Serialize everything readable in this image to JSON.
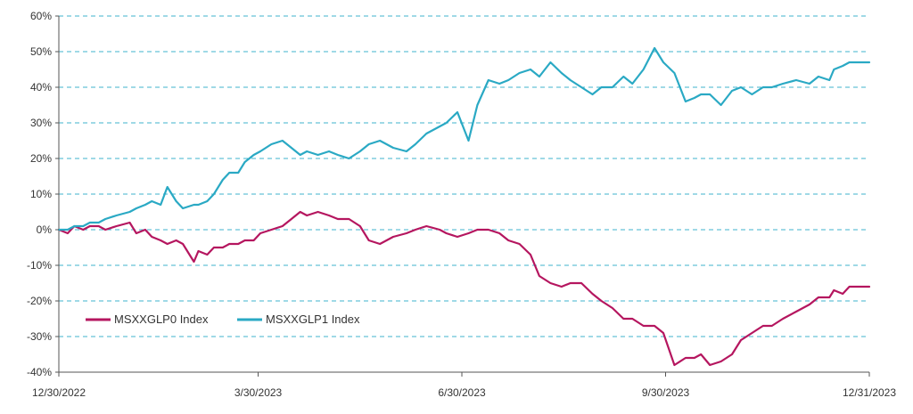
{
  "chart_data": {
    "type": "line",
    "title": "",
    "xlabel": "",
    "ylabel": "",
    "xlim": [
      "12/30/2022",
      "12/31/2023"
    ],
    "ylim": [
      -40,
      60
    ],
    "grid": "horizontal dashed",
    "legend_placement": "bottom-left",
    "y_ticks": [
      60,
      50,
      40,
      30,
      20,
      10,
      0,
      -10,
      -20,
      -30,
      -40
    ],
    "y_tick_labels": [
      "60%",
      "50%",
      "40%",
      "30%",
      "20%",
      "10%",
      "0%",
      "-10%",
      "-20%",
      "-30%",
      "-40%"
    ],
    "x_tick_labels": [
      "12/30/2022",
      "3/30/2023",
      "6/30/2023",
      "9/30/2023",
      "12/31/2023"
    ],
    "series": [
      {
        "name": "MSXXGLP0 Index",
        "color": "#b5165f",
        "x": [
          "2022-12-30",
          "2023-01-03",
          "2023-01-06",
          "2023-01-10",
          "2023-01-13",
          "2023-01-17",
          "2023-01-20",
          "2023-01-25",
          "2023-01-31",
          "2023-02-03",
          "2023-02-07",
          "2023-02-10",
          "2023-02-14",
          "2023-02-17",
          "2023-02-21",
          "2023-02-24",
          "2023-03-01",
          "2023-03-03",
          "2023-03-07",
          "2023-03-10",
          "2023-03-14",
          "2023-03-17",
          "2023-03-21",
          "2023-03-24",
          "2023-03-28",
          "2023-03-31",
          "2023-04-05",
          "2023-04-10",
          "2023-04-14",
          "2023-04-18",
          "2023-04-21",
          "2023-04-26",
          "2023-05-01",
          "2023-05-05",
          "2023-05-10",
          "2023-05-15",
          "2023-05-19",
          "2023-05-24",
          "2023-05-30",
          "2023-06-05",
          "2023-06-09",
          "2023-06-14",
          "2023-06-20",
          "2023-06-23",
          "2023-06-28",
          "2023-07-03",
          "2023-07-07",
          "2023-07-12",
          "2023-07-17",
          "2023-07-21",
          "2023-07-26",
          "2023-07-31",
          "2023-08-04",
          "2023-08-09",
          "2023-08-14",
          "2023-08-18",
          "2023-08-23",
          "2023-08-28",
          "2023-09-01",
          "2023-09-06",
          "2023-09-11",
          "2023-09-15",
          "2023-09-20",
          "2023-09-25",
          "2023-09-29",
          "2023-10-04",
          "2023-10-09",
          "2023-10-13",
          "2023-10-16",
          "2023-10-20",
          "2023-10-25",
          "2023-10-30",
          "2023-11-03",
          "2023-11-08",
          "2023-11-13",
          "2023-11-17",
          "2023-11-22",
          "2023-11-28",
          "2023-12-04",
          "2023-12-08",
          "2023-12-13",
          "2023-12-15",
          "2023-12-19",
          "2023-12-22",
          "2023-12-27",
          "2023-12-31"
        ],
        "values": [
          0,
          -1,
          1,
          0,
          1,
          1,
          0,
          1,
          2,
          -1,
          0,
          -2,
          -3,
          -4,
          -3,
          -4,
          -9,
          -6,
          -7,
          -5,
          -5,
          -4,
          -4,
          -3,
          -3,
          -1,
          0,
          1,
          3,
          5,
          4,
          5,
          4,
          3,
          3,
          1,
          -3,
          -4,
          -2,
          -1,
          0,
          1,
          0,
          -1,
          -2,
          -1,
          0,
          0,
          -1,
          -3,
          -4,
          -7,
          -13,
          -15,
          -16,
          -15,
          -15,
          -18,
          -20,
          -22,
          -25,
          -25,
          -27,
          -27,
          -29,
          -38,
          -36,
          -36,
          -35,
          -38,
          -37,
          -35,
          -31,
          -29,
          -27,
          -27,
          -25,
          -23,
          -21,
          -19,
          -19,
          -17,
          -18,
          -16,
          -16,
          -16
        ]
      },
      {
        "name": "MSXXGLP1 Index",
        "color": "#2aa9c4",
        "x": [
          "2022-12-30",
          "2023-01-03",
          "2023-01-06",
          "2023-01-10",
          "2023-01-13",
          "2023-01-17",
          "2023-01-20",
          "2023-01-25",
          "2023-01-31",
          "2023-02-03",
          "2023-02-07",
          "2023-02-10",
          "2023-02-14",
          "2023-02-17",
          "2023-02-21",
          "2023-02-24",
          "2023-03-01",
          "2023-03-03",
          "2023-03-07",
          "2023-03-10",
          "2023-03-14",
          "2023-03-17",
          "2023-03-21",
          "2023-03-24",
          "2023-03-28",
          "2023-03-31",
          "2023-04-05",
          "2023-04-10",
          "2023-04-14",
          "2023-04-18",
          "2023-04-21",
          "2023-04-26",
          "2023-05-01",
          "2023-05-05",
          "2023-05-10",
          "2023-05-15",
          "2023-05-19",
          "2023-05-24",
          "2023-05-30",
          "2023-06-05",
          "2023-06-09",
          "2023-06-14",
          "2023-06-20",
          "2023-06-23",
          "2023-06-28",
          "2023-07-03",
          "2023-07-07",
          "2023-07-12",
          "2023-07-17",
          "2023-07-21",
          "2023-07-26",
          "2023-07-31",
          "2023-08-04",
          "2023-08-09",
          "2023-08-14",
          "2023-08-18",
          "2023-08-23",
          "2023-08-28",
          "2023-09-01",
          "2023-09-06",
          "2023-09-11",
          "2023-09-15",
          "2023-09-20",
          "2023-09-25",
          "2023-09-29",
          "2023-10-04",
          "2023-10-09",
          "2023-10-13",
          "2023-10-16",
          "2023-10-20",
          "2023-10-25",
          "2023-10-30",
          "2023-11-03",
          "2023-11-08",
          "2023-11-13",
          "2023-11-17",
          "2023-11-22",
          "2023-11-28",
          "2023-12-04",
          "2023-12-08",
          "2023-12-13",
          "2023-12-15",
          "2023-12-19",
          "2023-12-22",
          "2023-12-27",
          "2023-12-31"
        ],
        "values": [
          0,
          0,
          1,
          1,
          2,
          2,
          3,
          4,
          5,
          6,
          7,
          8,
          7,
          12,
          8,
          6,
          7,
          7,
          8,
          10,
          14,
          16,
          16,
          19,
          21,
          22,
          24,
          25,
          23,
          21,
          22,
          21,
          22,
          21,
          20,
          22,
          24,
          25,
          23,
          22,
          24,
          27,
          29,
          30,
          33,
          25,
          35,
          42,
          41,
          42,
          44,
          45,
          43,
          47,
          44,
          42,
          40,
          38,
          40,
          40,
          43,
          41,
          45,
          51,
          47,
          44,
          36,
          37,
          38,
          38,
          35,
          39,
          40,
          38,
          40,
          40,
          41,
          42,
          41,
          43,
          42,
          45,
          46,
          47,
          47,
          47
        ]
      }
    ]
  }
}
